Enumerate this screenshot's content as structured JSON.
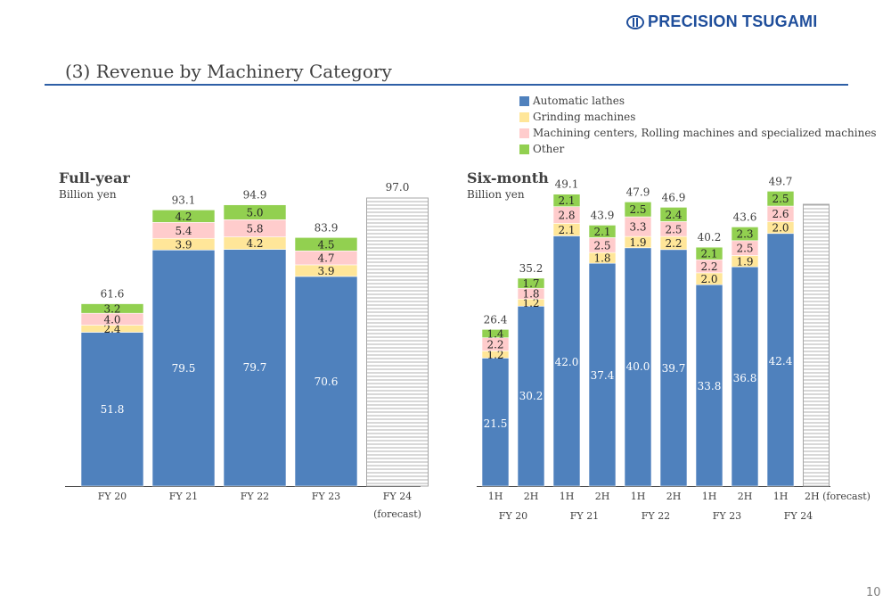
{
  "header": {
    "brand": "PRECISION TSUGAMI",
    "title": "(3) Revenue by Machinery Category"
  },
  "legend": [
    {
      "label": "Automatic lathes",
      "color": "#4f81bd"
    },
    {
      "label": "Grinding machines",
      "color": "#ffe699"
    },
    {
      "label": "Machining centers, Rolling machines and specialized machines",
      "color": "#ffcccc"
    },
    {
      "label": "Other",
      "color": "#92d050"
    }
  ],
  "page_number": "10",
  "chart_data": [
    {
      "type": "bar",
      "stacked": true,
      "title": "Full-year",
      "ylabel": "Billion yen",
      "ylim": [
        0,
        100
      ],
      "grid": false,
      "categories": [
        "FY 20",
        "FY 21",
        "FY 22",
        "FY 23",
        "FY 24"
      ],
      "category_sublabels": [
        "",
        "",
        "",
        "",
        "(forecast)"
      ],
      "series": [
        {
          "name": "Automatic lathes",
          "color": "#4f81bd",
          "values": [
            51.8,
            79.5,
            79.7,
            70.6,
            null
          ]
        },
        {
          "name": "Grinding machines",
          "color": "#ffe699",
          "values": [
            2.4,
            3.9,
            4.2,
            3.9,
            null
          ]
        },
        {
          "name": "Machining centers, Rolling machines and specialized machines",
          "color": "#ffcccc",
          "values": [
            4.0,
            5.4,
            5.8,
            4.7,
            null
          ]
        },
        {
          "name": "Other",
          "color": "#92d050",
          "values": [
            3.2,
            4.2,
            5.0,
            4.5,
            null
          ]
        }
      ],
      "totals": [
        61.6,
        93.1,
        94.9,
        83.9,
        97.0
      ],
      "forecast": [
        false,
        false,
        false,
        false,
        true
      ]
    },
    {
      "type": "bar",
      "stacked": true,
      "title": "Six-month",
      "ylabel": "Billion yen",
      "ylim": [
        0,
        50
      ],
      "grid": false,
      "categories": [
        "1H",
        "2H",
        "1H",
        "2H",
        "1H",
        "2H",
        "1H",
        "2H",
        "1H",
        "2H (forecast)"
      ],
      "groups": [
        "FY 20",
        "FY 21",
        "FY 22",
        "FY 23",
        "FY 24"
      ],
      "series": [
        {
          "name": "Automatic lathes",
          "color": "#4f81bd",
          "values": [
            21.5,
            30.2,
            42.0,
            37.4,
            40.0,
            39.7,
            33.8,
            36.8,
            42.4,
            null
          ]
        },
        {
          "name": "Grinding machines",
          "color": "#ffe699",
          "values": [
            1.2,
            1.2,
            2.1,
            1.8,
            1.9,
            2.2,
            2.0,
            1.9,
            2.0,
            null
          ]
        },
        {
          "name": "Machining centers, Rolling machines and specialized machines",
          "color": "#ffcccc",
          "values": [
            2.2,
            1.8,
            2.8,
            2.5,
            3.3,
            2.5,
            2.2,
            2.5,
            2.6,
            null
          ]
        },
        {
          "name": "Other",
          "color": "#92d050",
          "values": [
            1.4,
            1.7,
            2.1,
            2.1,
            2.5,
            2.4,
            2.1,
            2.3,
            2.5,
            null
          ]
        }
      ],
      "totals": [
        26.4,
        35.2,
        49.1,
        43.9,
        47.9,
        46.9,
        40.2,
        43.6,
        49.7,
        null
      ],
      "forecast_estimate": 47.3,
      "forecast": [
        false,
        false,
        false,
        false,
        false,
        false,
        false,
        false,
        false,
        true
      ]
    }
  ]
}
